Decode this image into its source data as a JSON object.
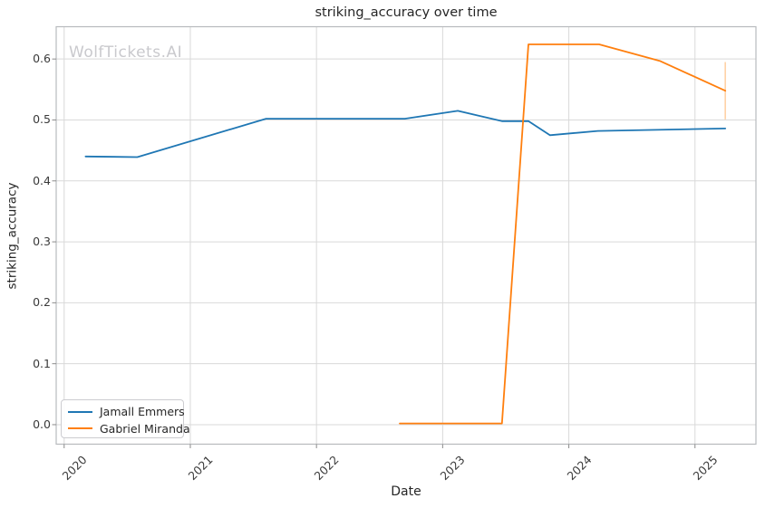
{
  "title": "striking_accuracy over time",
  "watermark": "WolfTickets.AI",
  "axes": {
    "xlabel": "Date",
    "ylabel": "striking_accuracy"
  },
  "colors": {
    "series_blue": "#1f77b4",
    "series_orange": "#ff7f0e",
    "error_bar": "#ffd2a6",
    "grid": "#d9d9d9",
    "spine": "#b7babd",
    "tick": "#8a8a8a",
    "text": "#262626",
    "watermark": "#c9c9cd",
    "background": "#ffffff"
  },
  "chart_data": {
    "type": "line",
    "title": "striking_accuracy over time",
    "xlabel": "Date",
    "ylabel": "striking_accuracy",
    "grid": true,
    "legend_position": "lower left",
    "x_unit": "decimal_year",
    "xlim": [
      2019.937,
      2025.483
    ],
    "ylim": [
      -0.032,
      0.653
    ],
    "x_ticks": [
      2020,
      2021,
      2022,
      2023,
      2024,
      2025
    ],
    "y_ticks": [
      0.0,
      0.1,
      0.2,
      0.3,
      0.4,
      0.5,
      0.6
    ],
    "series": [
      {
        "name": "Jamall Emmers",
        "color": "#1f77b4",
        "x": [
          2020.17,
          2020.58,
          2021.6,
          2022.7,
          2023.12,
          2023.47,
          2023.68,
          2023.85,
          2024.23,
          2025.24
        ],
        "y": [
          0.44,
          0.439,
          0.502,
          0.502,
          0.515,
          0.498,
          0.498,
          0.475,
          0.482,
          0.486
        ]
      },
      {
        "name": "Gabriel Miranda",
        "color": "#ff7f0e",
        "x": [
          2022.66,
          2023.47,
          2023.68,
          2024.24,
          2024.72,
          2025.24
        ],
        "y": [
          0.002,
          0.002,
          0.624,
          0.624,
          0.597,
          0.548
        ],
        "error_bar": {
          "x": 2025.24,
          "y_low": 0.501,
          "y_high": 0.595
        }
      }
    ]
  }
}
